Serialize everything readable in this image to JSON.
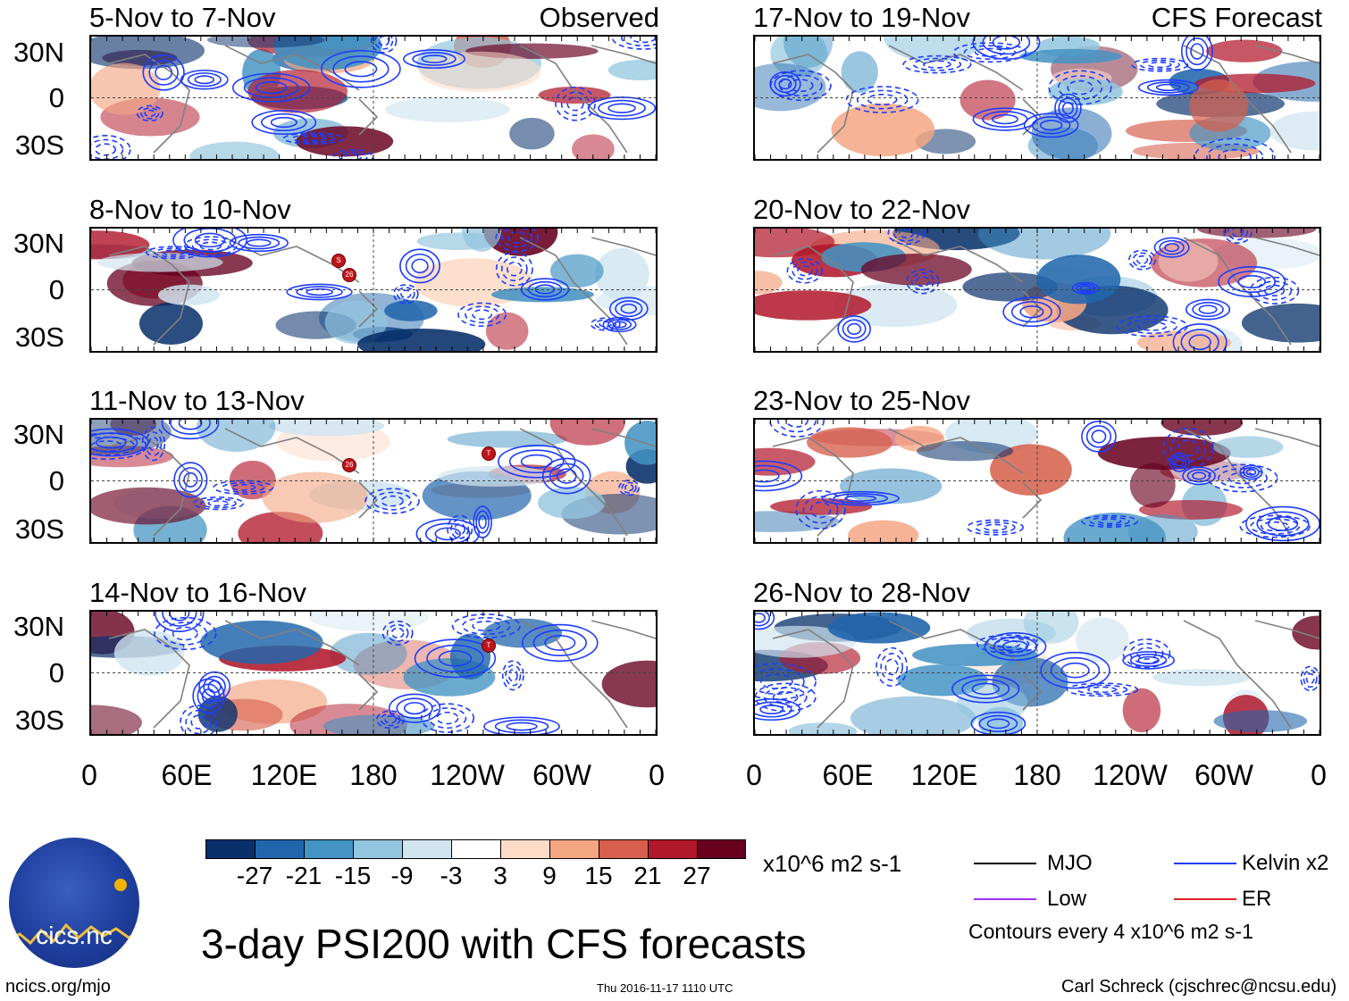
{
  "observed_label": "Observed",
  "forecast_label": "CFS Forecast",
  "latitude_labels": [
    "30N",
    "0",
    "30S"
  ],
  "longitude_labels": [
    "0",
    "60E",
    "120E",
    "180",
    "120W",
    "60W",
    "0"
  ],
  "panels_observed": [
    {
      "title": "5-Nov to 7-Nov"
    },
    {
      "title": "8-Nov to 10-Nov"
    },
    {
      "title": "11-Nov to 13-Nov"
    },
    {
      "title": "14-Nov to 16-Nov"
    }
  ],
  "panels_forecast": [
    {
      "title": "17-Nov to 19-Nov"
    },
    {
      "title": "20-Nov to 22-Nov"
    },
    {
      "title": "23-Nov to 25-Nov"
    },
    {
      "title": "26-Nov to 28-Nov"
    }
  ],
  "colorbar": {
    "tick_labels": [
      "-27",
      "-21",
      "-15",
      "-9",
      "-3",
      "3",
      "9",
      "15",
      "21",
      "27"
    ],
    "colors": [
      "#08306b",
      "#2166ac",
      "#4393c3",
      "#92c5de",
      "#d1e5f0",
      "#ffffff",
      "#fddbc7",
      "#f4a582",
      "#d6604d",
      "#b2182b",
      "#67001f"
    ],
    "units": "x10^6 m2 s-1"
  },
  "legend": {
    "mjo": {
      "label": "MJO",
      "color": "#000000"
    },
    "kelvin": {
      "label": "Kelvin x2",
      "color": "#1e3cff"
    },
    "low": {
      "label": "Low",
      "color": "#9b30ff"
    },
    "er": {
      "label": "ER",
      "color": "#e02020"
    },
    "contour_note": "Contours every 4 x10^6 m2 s-1"
  },
  "main_title": "3-day PSI200 with CFS forecasts",
  "footer": {
    "url": "ncics.org/mjo",
    "timestamp": "Thu 2016-11-17 1110 UTC",
    "author": "Carl Schreck (cjschrec@ncsu.edu)"
  },
  "logo": {
    "text": "cics.nc"
  },
  "storm_markers": [
    {
      "panel": 1,
      "label": "S"
    },
    {
      "panel": 1,
      "label": "26"
    },
    {
      "panel": 2,
      "label": "26"
    },
    {
      "panel": 2,
      "label": "T"
    },
    {
      "panel": 3,
      "label": "T"
    }
  ]
}
